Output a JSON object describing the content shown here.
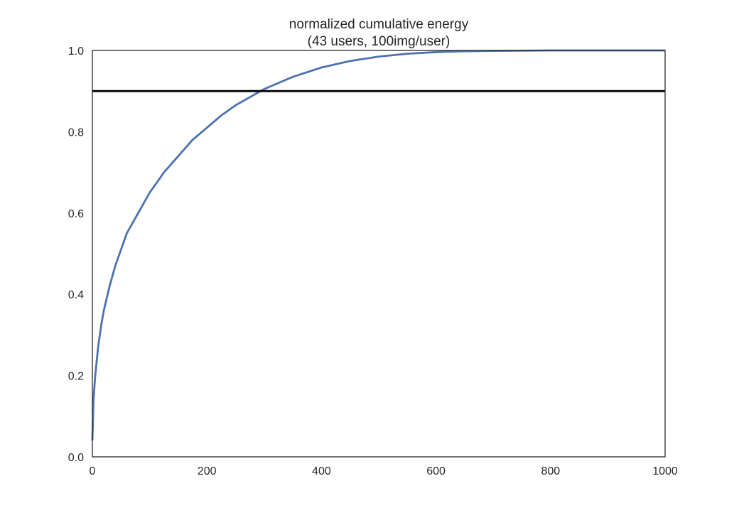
{
  "chart_data": {
    "type": "line",
    "title": "normalized cumulative energy",
    "subtitle": "(43 users, 100img/user)",
    "xlabel": "",
    "ylabel": "",
    "xlim": [
      0,
      1000
    ],
    "ylim": [
      0.0,
      1.0
    ],
    "x_ticks": [
      "0",
      "200",
      "400",
      "600",
      "800",
      "1000"
    ],
    "y_ticks": [
      "0.0",
      "0.2",
      "0.4",
      "0.6",
      "0.8",
      "1.0"
    ],
    "grid": false,
    "series": [
      {
        "color": "#4c72b0",
        "x": [
          0,
          2,
          5,
          10,
          15,
          20,
          30,
          40,
          50,
          60,
          80,
          100,
          125,
          150,
          175,
          200,
          225,
          250,
          275,
          300,
          350,
          400,
          450,
          500,
          550,
          600,
          650,
          700,
          800,
          900,
          1000
        ],
        "y": [
          0.04,
          0.14,
          0.2,
          0.27,
          0.32,
          0.36,
          0.42,
          0.47,
          0.51,
          0.55,
          0.6,
          0.65,
          0.7,
          0.74,
          0.78,
          0.81,
          0.84,
          0.865,
          0.885,
          0.905,
          0.935,
          0.958,
          0.974,
          0.985,
          0.992,
          0.996,
          0.998,
          0.999,
          1.0,
          1.0,
          1.0
        ]
      }
    ],
    "reference_line": {
      "y": 0.9,
      "color": "#000000"
    }
  }
}
